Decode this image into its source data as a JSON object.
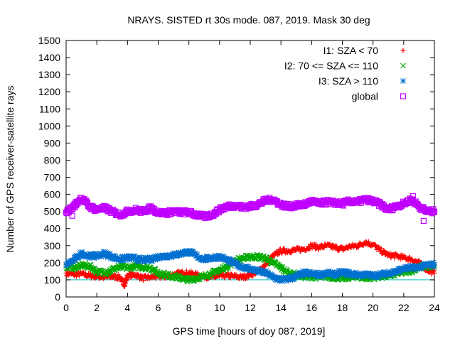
{
  "chart_data": {
    "type": "scatter",
    "title": "NRAYS. SISTED rt 30s mode. 087, 2019. Mask 30 deg",
    "xlabel": "GPS time [hours of doy 087, 2019]",
    "ylabel": "Number of GPS receiver-satellite rays",
    "xlim": [
      0,
      24
    ],
    "ylim": [
      0,
      1500
    ],
    "xticks": [
      0,
      2,
      4,
      6,
      8,
      10,
      12,
      14,
      16,
      18,
      20,
      22,
      24
    ],
    "yticks": [
      0,
      100,
      200,
      300,
      400,
      500,
      600,
      700,
      800,
      900,
      1000,
      1100,
      1200,
      1300,
      1400,
      1500
    ],
    "reference_line": {
      "y": 100,
      "color": "#00c0c0"
    },
    "legend_position": "top-right",
    "series": [
      {
        "name": "I1: SZA < 70",
        "marker": "plus",
        "color": "#ff0000",
        "x": [
          0,
          0.5,
          1,
          1.5,
          2,
          2.5,
          3,
          3.5,
          3.8,
          4,
          4.5,
          5,
          5.5,
          6,
          6.5,
          7,
          7.5,
          8,
          8.5,
          9,
          9.5,
          10,
          10.5,
          11,
          11.5,
          12,
          12.5,
          13,
          13.5,
          14,
          14.5,
          15,
          15.5,
          16,
          16.5,
          17,
          17.5,
          18,
          18.5,
          19,
          19.5,
          20,
          20.5,
          21,
          21.5,
          22,
          22.5,
          23,
          23.5,
          24
        ],
        "y": [
          140,
          130,
          135,
          125,
          120,
          115,
          120,
          115,
          70,
          125,
          130,
          110,
          115,
          120,
          120,
          130,
          140,
          140,
          130,
          120,
          115,
          120,
          125,
          120,
          115,
          130,
          150,
          190,
          240,
          270,
          270,
          275,
          280,
          300,
          290,
          300,
          290,
          280,
          295,
          300,
          320,
          305,
          270,
          245,
          240,
          230,
          220,
          200,
          160,
          140
        ]
      },
      {
        "name": "I2: 70 <= SZA <= 110",
        "marker": "cross",
        "color": "#00aa00",
        "x": [
          0,
          0.5,
          1,
          1.5,
          2,
          2.5,
          3,
          3.5,
          4,
          4.5,
          5,
          5.5,
          6,
          6.5,
          7,
          7.5,
          8,
          8.5,
          9,
          9.5,
          10,
          10.5,
          11,
          11.5,
          12,
          12.5,
          13,
          13.5,
          14,
          14.5,
          15,
          15.5,
          16,
          16.5,
          17,
          17.5,
          18,
          18.5,
          19,
          19.5,
          20,
          20.5,
          21,
          21.5,
          22,
          22.5,
          23,
          23.5,
          24
        ],
        "y": [
          180,
          170,
          185,
          180,
          150,
          140,
          160,
          175,
          170,
          180,
          175,
          170,
          140,
          130,
          120,
          110,
          100,
          110,
          120,
          140,
          155,
          180,
          210,
          225,
          235,
          235,
          225,
          200,
          170,
          140,
          130,
          120,
          120,
          115,
          120,
          115,
          110,
          115,
          120,
          110,
          115,
          120,
          125,
          135,
          145,
          155,
          175,
          180,
          175
        ]
      },
      {
        "name": "I3: SZA > 110",
        "marker": "star",
        "color": "#0070d0",
        "x": [
          0,
          0.5,
          1,
          1.5,
          2,
          2.5,
          3,
          3.5,
          4,
          4.5,
          5,
          5.5,
          6,
          6.5,
          7,
          7.5,
          8,
          8.5,
          9,
          9.5,
          10,
          10.5,
          11,
          11.5,
          12,
          12.5,
          13,
          13.5,
          14,
          14.5,
          15,
          15.5,
          16,
          16.5,
          17,
          17.5,
          18,
          18.5,
          19,
          19.5,
          20,
          20.5,
          21,
          21.5,
          22,
          22.5,
          23,
          23.5,
          24
        ],
        "y": [
          190,
          215,
          255,
          240,
          240,
          255,
          235,
          220,
          230,
          225,
          215,
          220,
          235,
          240,
          245,
          255,
          265,
          240,
          220,
          230,
          235,
          215,
          195,
          175,
          165,
          150,
          140,
          115,
          100,
          105,
          120,
          140,
          135,
          130,
          140,
          130,
          145,
          135,
          130,
          130,
          125,
          130,
          140,
          150,
          165,
          170,
          175,
          185,
          190
        ]
      },
      {
        "name": "global",
        "marker": "square",
        "color": "#c000ff",
        "x": [
          0,
          0.5,
          1,
          1.5,
          2,
          2.5,
          3,
          3.5,
          4,
          4.5,
          5,
          5.5,
          6,
          6.5,
          7,
          7.5,
          8,
          8.5,
          9,
          9.5,
          10,
          10.5,
          11,
          11.5,
          12,
          12.5,
          13,
          13.5,
          14,
          14.5,
          15,
          15.5,
          16,
          16.5,
          17,
          17.5,
          18,
          18.5,
          19,
          19.5,
          20,
          20.5,
          21,
          21.5,
          22,
          22.5,
          23,
          23.5,
          24
        ],
        "y": [
          495,
          530,
          580,
          530,
          510,
          520,
          500,
          480,
          500,
          510,
          500,
          520,
          495,
          490,
          500,
          495,
          495,
          480,
          470,
          480,
          510,
          530,
          535,
          525,
          530,
          540,
          565,
          570,
          540,
          530,
          535,
          540,
          560,
          545,
          555,
          550,
          545,
          560,
          555,
          570,
          560,
          540,
          510,
          530,
          545,
          570,
          530,
          500,
          500
        ]
      }
    ],
    "extra_points": [
      {
        "series": "global",
        "x": 23.3,
        "y": 445
      },
      {
        "series": "global",
        "x": 0.4,
        "y": 475
      },
      {
        "series": "global",
        "x": 22.6,
        "y": 590
      }
    ]
  }
}
